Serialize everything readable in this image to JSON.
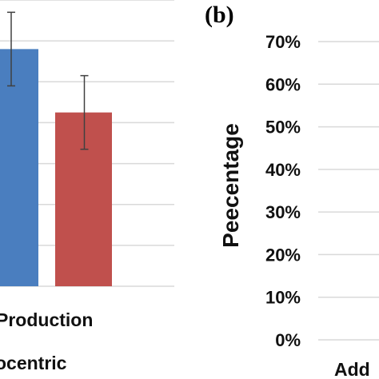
{
  "panel_a": {
    "category_label": "Production",
    "group_label": "ocentric"
  },
  "panel_b": {
    "panel_label": "(b)",
    "ylabel": "Peecentage",
    "yticks": [
      "0%",
      "10%",
      "20%",
      "30%",
      "40%",
      "50%",
      "60%",
      "70%"
    ],
    "x_label_fragment": "Add"
  },
  "colors": {
    "blue_bar": "#4a7ebf",
    "red_bar": "#c0504d",
    "gridline": "#d9d9d9",
    "error_bar": "#404040"
  },
  "chart_data": [
    {
      "type": "bar",
      "categories": [
        "Production"
      ],
      "series": [
        {
          "values": [
            0.58
          ],
          "error": [
            0.09
          ]
        },
        {
          "values": [
            0.425
          ],
          "error": [
            0.09
          ]
        }
      ],
      "xlabel": "Production",
      "ylim": [
        0,
        0.7
      ],
      "grid": true
    },
    {
      "type": "bar",
      "title": "(b)",
      "ylabel": "Peecentage",
      "yticks": [
        "0%",
        "10%",
        "20%",
        "30%",
        "40%",
        "50%",
        "60%",
        "70%"
      ],
      "ylim": [
        0,
        0.7
      ],
      "grid": true,
      "series": []
    }
  ]
}
